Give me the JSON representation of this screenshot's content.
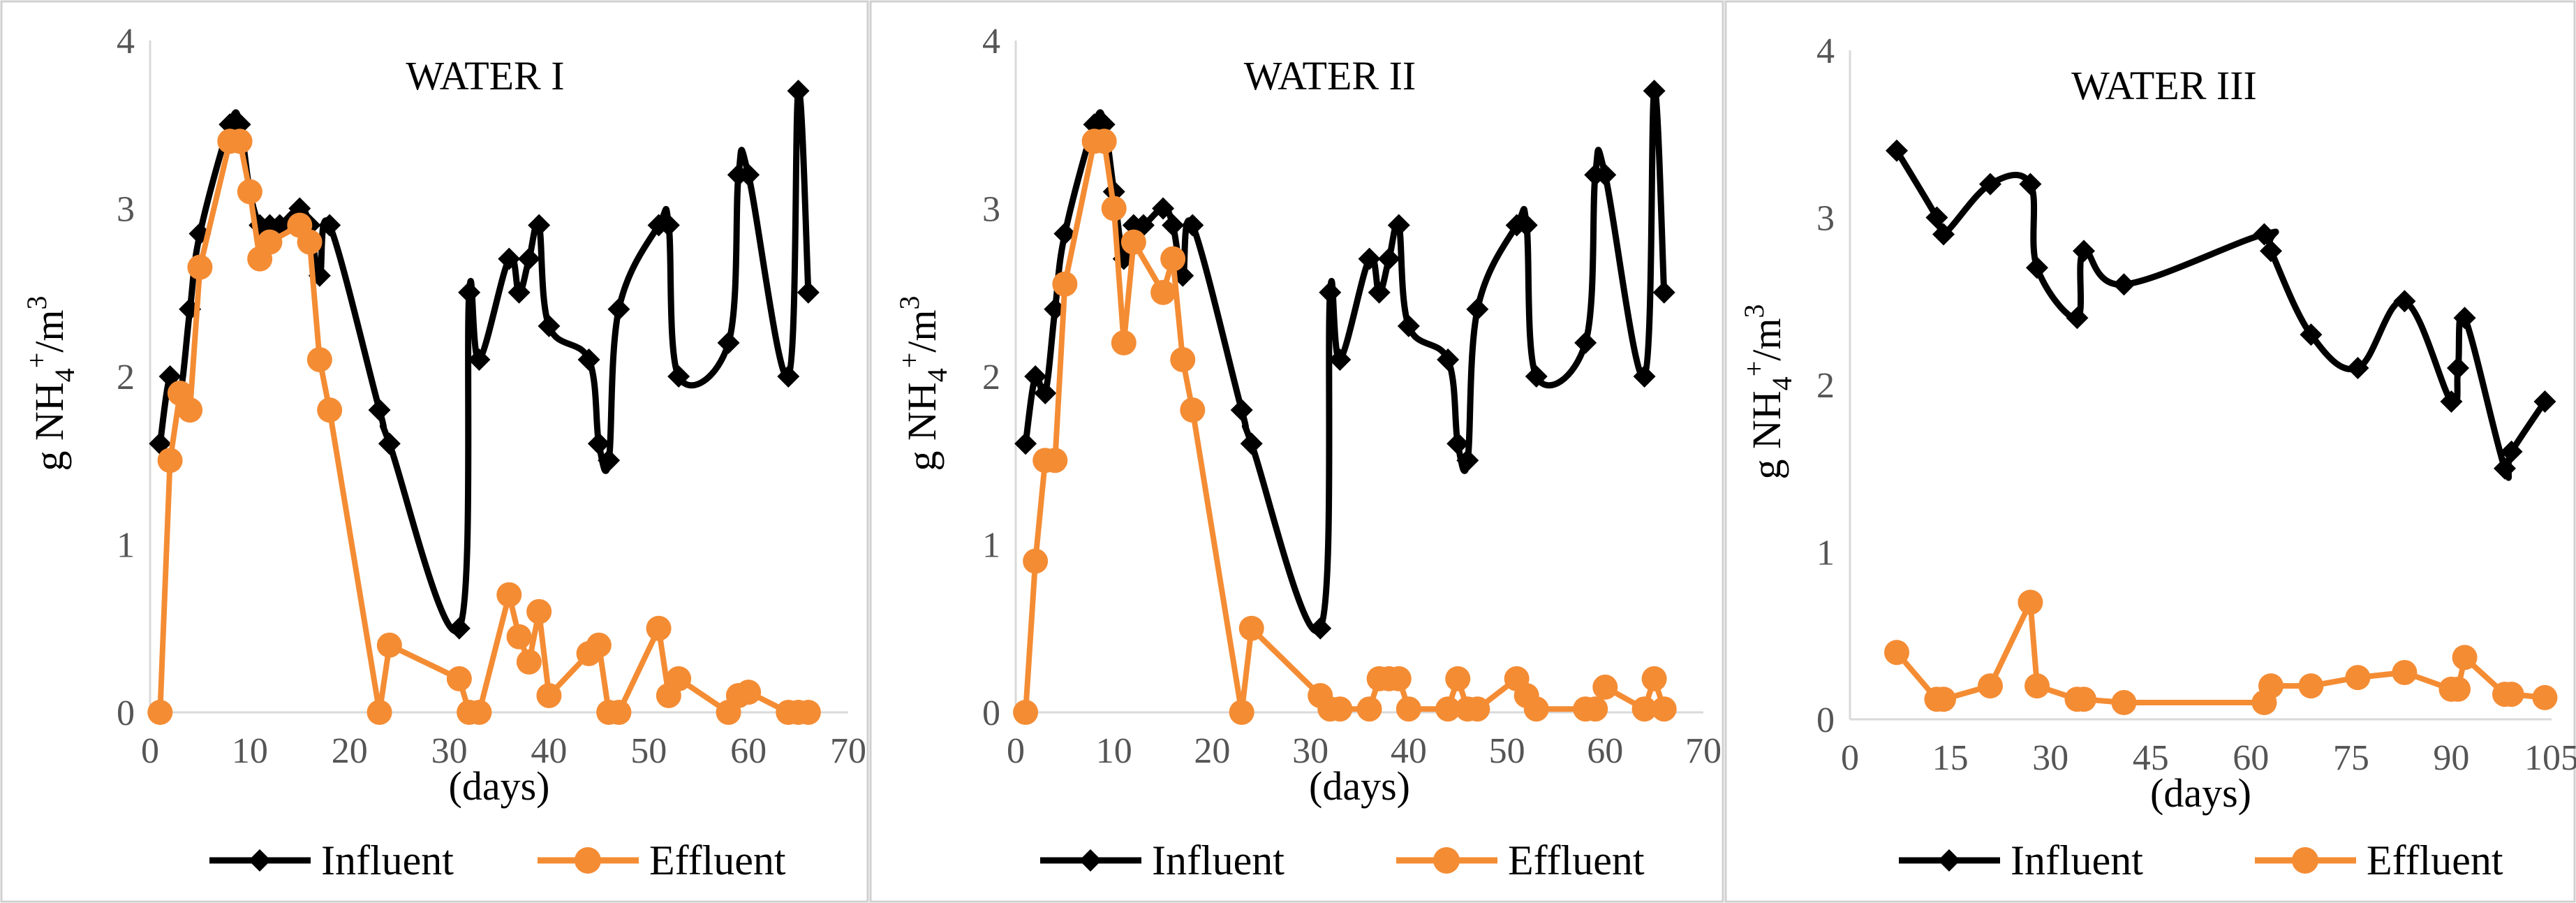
{
  "chart_data": [
    {
      "type": "line",
      "title": "WATER I",
      "xlabel": "(days)",
      "ylabel": {
        "base": "g NH",
        "sub": "4",
        "sup": "+",
        "tail": "/m",
        "sup2": "3"
      },
      "xlim": [
        0,
        70
      ],
      "ylim": [
        0,
        4
      ],
      "xticks": [
        0,
        10,
        20,
        30,
        40,
        50,
        60,
        70
      ],
      "yticks": [
        0,
        1,
        2,
        3,
        4
      ],
      "legend": "bottom",
      "series": [
        {
          "name": "Influent",
          "color": "#000000",
          "marker": "diamond",
          "smooth": true,
          "x": [
            1,
            2,
            3,
            4,
            5,
            8,
            9,
            10,
            11,
            12,
            13,
            15,
            16,
            17,
            18,
            23,
            24,
            31,
            32,
            33,
            36,
            37,
            38,
            39,
            40,
            44,
            45,
            46,
            47,
            51,
            52,
            53,
            58,
            59,
            60,
            64,
            65,
            66
          ],
          "y": [
            1.6,
            2.0,
            1.9,
            2.4,
            2.85,
            3.5,
            3.5,
            3.1,
            2.9,
            2.9,
            2.9,
            3.0,
            2.9,
            2.6,
            2.9,
            1.8,
            1.6,
            0.5,
            2.5,
            2.1,
            2.7,
            2.5,
            2.7,
            2.9,
            2.3,
            2.1,
            1.6,
            1.5,
            2.4,
            2.9,
            2.9,
            2.0,
            2.2,
            3.2,
            3.2,
            2.0,
            3.7,
            2.5
          ]
        },
        {
          "name": "Effluent",
          "color": "#f48c34",
          "marker": "circle",
          "smooth": false,
          "x": [
            1,
            2,
            3,
            4,
            5,
            8,
            9,
            10,
            11,
            12,
            15,
            16,
            17,
            18,
            23,
            24,
            31,
            32,
            33,
            36,
            37,
            38,
            39,
            40,
            44,
            45,
            46,
            47,
            51,
            52,
            53,
            58,
            59,
            60,
            64,
            65,
            66
          ],
          "y": [
            0,
            1.5,
            1.9,
            1.8,
            2.65,
            3.4,
            3.4,
            3.1,
            2.7,
            2.8,
            2.9,
            2.8,
            2.1,
            1.8,
            0,
            0.4,
            0.2,
            0,
            0,
            0.7,
            0.45,
            0.3,
            0.6,
            0.1,
            0.35,
            0.4,
            0,
            0,
            0.5,
            0.1,
            0.2,
            0,
            0.1,
            0.12,
            0,
            0,
            0
          ]
        }
      ]
    },
    {
      "type": "line",
      "title": "WATER II",
      "xlabel": "(days)",
      "ylabel": {
        "base": "g NH",
        "sub": "4",
        "sup": "+",
        "tail": "/m",
        "sup2": "3"
      },
      "xlim": [
        0,
        70
      ],
      "ylim": [
        0,
        4
      ],
      "xticks": [
        0,
        10,
        20,
        30,
        40,
        50,
        60,
        70
      ],
      "yticks": [
        0,
        1,
        2,
        3,
        4
      ],
      "legend": "bottom",
      "series": [
        {
          "name": "Influent",
          "color": "#000000",
          "marker": "diamond",
          "smooth": true,
          "x": [
            1,
            2,
            3,
            4,
            5,
            8,
            9,
            10,
            11,
            12,
            13,
            15,
            16,
            17,
            18,
            23,
            24,
            31,
            32,
            33,
            36,
            37,
            38,
            39,
            40,
            44,
            45,
            46,
            47,
            51,
            52,
            53,
            58,
            59,
            60,
            64,
            65,
            66
          ],
          "y": [
            1.6,
            2.0,
            1.9,
            2.4,
            2.85,
            3.5,
            3.5,
            3.1,
            2.7,
            2.9,
            2.9,
            3.0,
            2.9,
            2.6,
            2.9,
            1.8,
            1.6,
            0.5,
            2.5,
            2.1,
            2.7,
            2.5,
            2.7,
            2.9,
            2.3,
            2.1,
            1.6,
            1.5,
            2.4,
            2.9,
            2.9,
            2.0,
            2.2,
            3.2,
            3.2,
            2.0,
            3.7,
            2.5
          ]
        },
        {
          "name": "Effluent",
          "color": "#f48c34",
          "marker": "circle",
          "smooth": false,
          "x": [
            1,
            2,
            3,
            4,
            5,
            8,
            9,
            10,
            11,
            12,
            15,
            16,
            17,
            18,
            23,
            24,
            31,
            32,
            33,
            36,
            37,
            38,
            39,
            40,
            44,
            45,
            46,
            47,
            51,
            52,
            53,
            58,
            59,
            60,
            64,
            65,
            66
          ],
          "y": [
            0,
            0.9,
            1.5,
            1.5,
            2.55,
            3.4,
            3.4,
            3.0,
            2.2,
            2.8,
            2.5,
            2.7,
            2.1,
            1.8,
            0,
            0.5,
            0.1,
            0.02,
            0.02,
            0.02,
            0.2,
            0.2,
            0.2,
            0.02,
            0.02,
            0.2,
            0.02,
            0.02,
            0.2,
            0.1,
            0.02,
            0.02,
            0.02,
            0.15,
            0.02,
            0.2,
            0.02
          ]
        }
      ]
    },
    {
      "type": "line",
      "title": "WATER III",
      "xlabel": "(days)",
      "ylabel": {
        "base": "g NH",
        "sub": "4",
        "sup": "+",
        "tail": "/m",
        "sup2": "3"
      },
      "xlim": [
        0,
        105
      ],
      "ylim": [
        0,
        4
      ],
      "xticks": [
        0,
        15,
        30,
        45,
        60,
        75,
        90,
        105
      ],
      "yticks": [
        0,
        1,
        2,
        3,
        4
      ],
      "legend": "bottom",
      "series": [
        {
          "name": "Influent",
          "color": "#000000",
          "marker": "diamond",
          "smooth": true,
          "x": [
            7,
            13,
            14,
            21,
            27,
            28,
            34,
            35,
            41,
            62,
            63,
            69,
            76,
            83,
            90,
            91,
            92,
            98,
            99,
            104
          ],
          "y": [
            3.4,
            3.0,
            2.9,
            3.2,
            3.2,
            2.7,
            2.4,
            2.8,
            2.6,
            2.9,
            2.8,
            2.3,
            2.1,
            2.5,
            1.9,
            2.1,
            2.4,
            1.5,
            1.6,
            1.9
          ]
        },
        {
          "name": "Effluent",
          "color": "#f48c34",
          "marker": "circle",
          "smooth": false,
          "x": [
            7,
            13,
            14,
            21,
            27,
            28,
            34,
            35,
            41,
            62,
            63,
            69,
            76,
            83,
            90,
            91,
            92,
            98,
            99,
            104
          ],
          "y": [
            0.4,
            0.12,
            0.12,
            0.2,
            0.7,
            0.2,
            0.12,
            0.12,
            0.1,
            0.1,
            0.2,
            0.2,
            0.25,
            0.28,
            0.18,
            0.18,
            0.37,
            0.15,
            0.15,
            0.13
          ]
        }
      ]
    }
  ]
}
